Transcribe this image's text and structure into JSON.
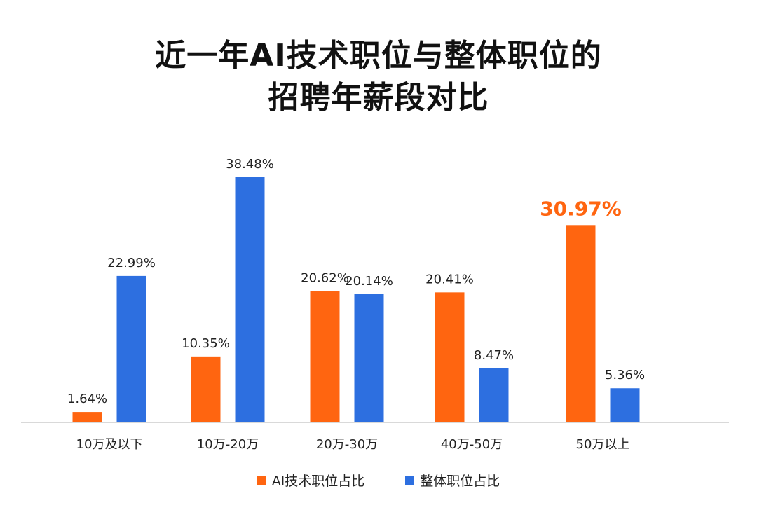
{
  "chart_data": {
    "type": "bar",
    "title_lines": [
      "近一年AI技术职位与整体职位的",
      "招聘年薪段对比"
    ],
    "categories": [
      "10万及以下",
      "10万-20万",
      "20万-30万",
      "40万-50万",
      "50万以上"
    ],
    "series": [
      {
        "name": "AI技术职位占比",
        "color": "#FF6510",
        "values": [
          1.64,
          10.35,
          20.62,
          20.41,
          30.97
        ],
        "labels": [
          "1.64%",
          "10.35%",
          "20.62%",
          "20.41%",
          "30.97%"
        ]
      },
      {
        "name": "整体职位占比",
        "color": "#2D6FE0",
        "values": [
          22.99,
          38.48,
          20.14,
          8.47,
          5.36
        ],
        "labels": [
          "22.99%",
          "38.48%",
          "20.14%",
          "8.47%",
          "5.36%"
        ]
      }
    ],
    "highlight": {
      "series": 0,
      "index": 4,
      "color": "#FF6510"
    },
    "ylim": [
      0,
      40
    ],
    "xlabel": "",
    "ylabel": "",
    "grid": false,
    "legend_position": "bottom-center"
  }
}
